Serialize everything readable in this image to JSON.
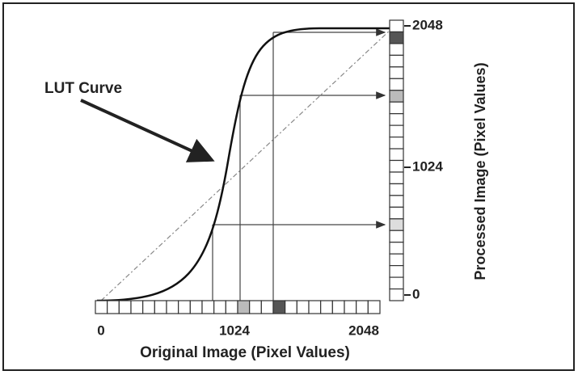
{
  "labels": {
    "lut_curve": "LUT Curve"
  },
  "x_axis": {
    "title": "Original Image (Pixel Values)",
    "ticks": [
      "0",
      "1024",
      "2048"
    ]
  },
  "y_axis": {
    "title": "Processed Image (Pixel Values)",
    "ticks": [
      "2048",
      "1024",
      "0"
    ]
  }
}
